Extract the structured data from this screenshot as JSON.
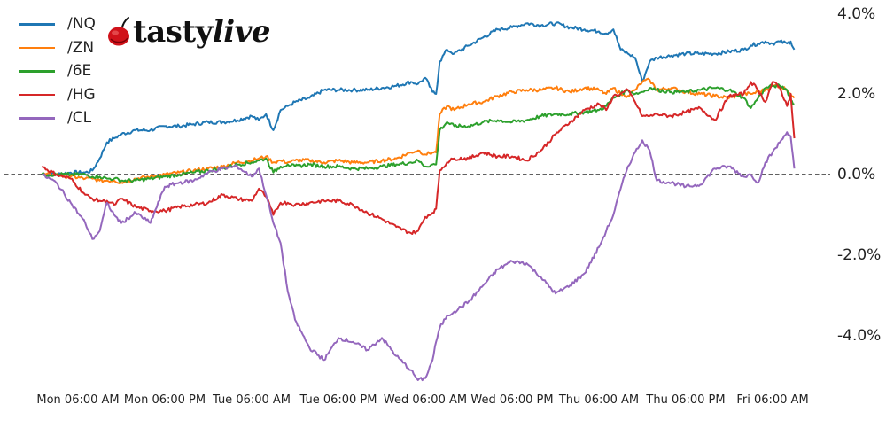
{
  "logo": {
    "brand_part1": "tasty",
    "brand_part2": "live",
    "icon": "cherry-icon",
    "icon_color": "#d0121a"
  },
  "legend": [
    {
      "label": "/NQ",
      "color": "#1f77b4"
    },
    {
      "label": "/ZN",
      "color": "#ff7f0e"
    },
    {
      "label": "/6E",
      "color": "#2ca02c"
    },
    {
      "label": "/HG",
      "color": "#d62728"
    },
    {
      "label": "/CL",
      "color": "#9467bd"
    }
  ],
  "y_ticks": [
    "4.0%",
    "2.0%",
    "0.0%",
    "-2.0%",
    "-4.0%"
  ],
  "x_ticks": [
    "Mon 06:00 AM",
    "Mon 06:00 PM",
    "Tue 06:00 AM",
    "Tue 06:00 PM",
    "Wed 06:00 AM",
    "Wed 06:00 PM",
    "Thu 06:00 AM",
    "Thu 06:00 PM",
    "Fri 06:00 AM"
  ],
  "chart_data": {
    "type": "line",
    "title": "",
    "xlabel": "",
    "ylabel": "",
    "x_unit": "hours since Mon 00:00",
    "ylim": [
      -5.6,
      4.3
    ],
    "y_ticks": [
      4.0,
      2.0,
      0.0,
      -2.0,
      -4.0
    ],
    "y_tick_labels": [
      "4.0%",
      "2.0%",
      "0.0%",
      "-2.0%",
      "-4.0%"
    ],
    "x_tick_positions": [
      6,
      18,
      30,
      42,
      54,
      66,
      78,
      90,
      102
    ],
    "x_tick_labels": [
      "Mon 06:00 AM",
      "Mon 06:00 PM",
      "Tue 06:00 AM",
      "Tue 06:00 PM",
      "Wed 06:00 AM",
      "Wed 06:00 PM",
      "Thu 06:00 AM",
      "Thu 06:00 PM",
      "Fri 06:00 AM"
    ],
    "reference_line": {
      "y": 0.0,
      "style": "dashed",
      "color": "#000000"
    },
    "legend_position": "upper left",
    "grid": false,
    "x": [
      1,
      3,
      5,
      7,
      8,
      9,
      10,
      11,
      12,
      14,
      16,
      18,
      20,
      22,
      24,
      26,
      28,
      30,
      31,
      32,
      33,
      34,
      35,
      36,
      38,
      40,
      42,
      44,
      46,
      48,
      50,
      52,
      53,
      54,
      55,
      55.5,
      56,
      57,
      58,
      60,
      62,
      64,
      66,
      68,
      70,
      72,
      74,
      76,
      78,
      79,
      80,
      81,
      82,
      83,
      84,
      85,
      86,
      88,
      90,
      92,
      94,
      96,
      98,
      99,
      100,
      101,
      102,
      103,
      104,
      104.5,
      105
    ],
    "series": [
      {
        "name": "/NQ",
        "color": "#1f77b4",
        "values": [
          0.0,
          0.0,
          0.05,
          0.05,
          0.1,
          0.4,
          0.8,
          0.9,
          1.0,
          1.1,
          1.1,
          1.2,
          1.2,
          1.25,
          1.3,
          1.3,
          1.35,
          1.45,
          1.35,
          1.5,
          1.1,
          1.6,
          1.7,
          1.8,
          1.9,
          2.1,
          2.1,
          2.1,
          2.1,
          2.15,
          2.2,
          2.3,
          2.25,
          2.4,
          2.05,
          2.0,
          2.8,
          3.1,
          3.0,
          3.2,
          3.4,
          3.6,
          3.65,
          3.75,
          3.7,
          3.75,
          3.65,
          3.6,
          3.55,
          3.5,
          3.6,
          3.1,
          3.0,
          2.9,
          2.3,
          2.8,
          2.9,
          2.95,
          3.0,
          3.0,
          3.0,
          3.05,
          3.1,
          3.2,
          3.25,
          3.3,
          3.25,
          3.3,
          3.25,
          3.3,
          3.1
        ]
      },
      {
        "name": "/ZN",
        "color": "#ff7f0e",
        "values": [
          0.0,
          0.0,
          -0.05,
          -0.1,
          -0.1,
          -0.15,
          -0.15,
          -0.15,
          -0.2,
          -0.1,
          -0.05,
          0.0,
          0.05,
          0.1,
          0.15,
          0.2,
          0.3,
          0.35,
          0.4,
          0.45,
          0.3,
          0.35,
          0.3,
          0.35,
          0.35,
          0.3,
          0.35,
          0.3,
          0.3,
          0.35,
          0.4,
          0.55,
          0.6,
          0.5,
          0.55,
          0.55,
          1.5,
          1.7,
          1.6,
          1.75,
          1.8,
          1.95,
          2.05,
          2.1,
          2.1,
          2.15,
          2.05,
          2.15,
          2.1,
          2.0,
          2.15,
          2.0,
          1.95,
          2.1,
          2.3,
          2.35,
          2.1,
          2.15,
          2.05,
          2.0,
          1.95,
          1.9,
          2.0,
          2.0,
          2.05,
          2.1,
          2.2,
          2.2,
          2.1,
          2.0,
          1.9
        ]
      },
      {
        "name": "/6E",
        "color": "#2ca02c",
        "values": [
          0.0,
          0.0,
          0.0,
          0.0,
          -0.05,
          -0.05,
          -0.1,
          -0.1,
          -0.15,
          -0.15,
          -0.1,
          -0.05,
          0.0,
          0.05,
          0.1,
          0.15,
          0.25,
          0.3,
          0.35,
          0.4,
          0.05,
          0.2,
          0.25,
          0.2,
          0.25,
          0.2,
          0.2,
          0.15,
          0.15,
          0.2,
          0.25,
          0.3,
          0.35,
          0.2,
          0.25,
          0.25,
          1.1,
          1.3,
          1.2,
          1.2,
          1.3,
          1.35,
          1.3,
          1.35,
          1.45,
          1.5,
          1.5,
          1.55,
          1.6,
          1.7,
          1.9,
          2.0,
          2.1,
          2.0,
          2.05,
          2.15,
          2.1,
          2.05,
          2.05,
          2.1,
          2.15,
          2.1,
          1.9,
          1.65,
          1.9,
          2.15,
          2.2,
          2.2,
          2.1,
          1.85,
          1.75
        ]
      },
      {
        "name": "/HG",
        "color": "#d62728",
        "values": [
          0.2,
          0.0,
          -0.1,
          -0.5,
          -0.6,
          -0.65,
          -0.65,
          -0.75,
          -0.6,
          -0.8,
          -0.9,
          -0.9,
          -0.8,
          -0.75,
          -0.7,
          -0.5,
          -0.6,
          -0.65,
          -0.35,
          -0.55,
          -1.0,
          -0.7,
          -0.7,
          -0.75,
          -0.7,
          -0.65,
          -0.65,
          -0.75,
          -0.95,
          -1.1,
          -1.3,
          -1.45,
          -1.4,
          -1.05,
          -0.95,
          -0.85,
          0.1,
          0.3,
          0.4,
          0.4,
          0.55,
          0.45,
          0.45,
          0.35,
          0.6,
          1.0,
          1.3,
          1.6,
          1.75,
          1.6,
          1.95,
          2.0,
          2.1,
          1.8,
          1.45,
          1.45,
          1.5,
          1.45,
          1.55,
          1.65,
          1.35,
          1.95,
          2.0,
          2.3,
          2.1,
          1.8,
          2.3,
          2.15,
          1.7,
          2.0,
          0.9
        ]
      },
      {
        "name": "/CL",
        "color": "#9467bd",
        "values": [
          0.0,
          -0.2,
          -0.7,
          -1.2,
          -1.6,
          -1.4,
          -0.7,
          -1.0,
          -1.2,
          -0.95,
          -1.2,
          -0.3,
          -0.2,
          -0.15,
          0.05,
          0.15,
          0.2,
          -0.05,
          0.15,
          -0.5,
          -1.2,
          -1.7,
          -2.9,
          -3.6,
          -4.3,
          -4.6,
          -4.05,
          -4.15,
          -4.35,
          -4.05,
          -4.5,
          -4.85,
          -5.1,
          -5.05,
          -4.6,
          -4.15,
          -3.8,
          -3.5,
          -3.4,
          -3.15,
          -2.75,
          -2.35,
          -2.15,
          -2.2,
          -2.55,
          -2.95,
          -2.75,
          -2.45,
          -1.8,
          -1.4,
          -1.0,
          -0.35,
          0.2,
          0.55,
          0.85,
          0.6,
          -0.15,
          -0.2,
          -0.3,
          -0.25,
          0.15,
          0.2,
          -0.05,
          0.0,
          -0.2,
          0.3,
          0.55,
          0.8,
          1.05,
          0.95,
          0.15
        ]
      }
    ]
  }
}
